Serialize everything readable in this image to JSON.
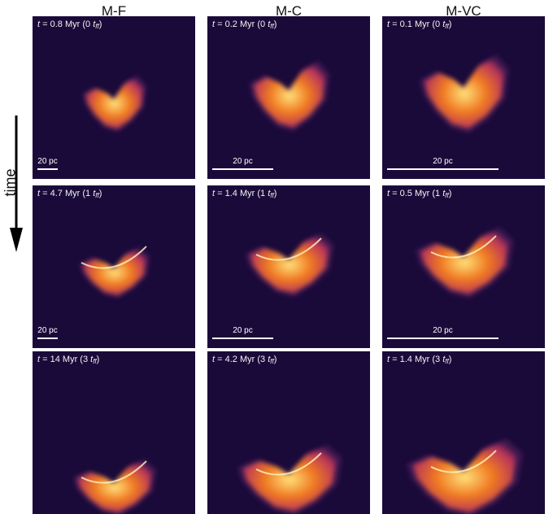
{
  "columns": [
    "M-F",
    "M-C",
    "M-VC"
  ],
  "time_axis_label": "time",
  "scale_bar_text": "20 pc",
  "tff_symbol": "t",
  "tff_sub": "ff",
  "rows": [
    [
      {
        "time_value": "0.8",
        "time_unit": "Myr",
        "tff_mult": "0"
      },
      {
        "time_value": "0.2",
        "time_unit": "Myr",
        "tff_mult": "0"
      },
      {
        "time_value": "0.1",
        "time_unit": "Myr",
        "tff_mult": "0"
      }
    ],
    [
      {
        "time_value": "4.7",
        "time_unit": "Myr",
        "tff_mult": "1"
      },
      {
        "time_value": "1.4",
        "time_unit": "Myr",
        "tff_mult": "1"
      },
      {
        "time_value": "0.5",
        "time_unit": "Myr",
        "tff_mult": "1"
      }
    ],
    [
      {
        "time_value": "14",
        "time_unit": "Myr",
        "tff_mult": "3"
      },
      {
        "time_value": "4.2",
        "time_unit": "Myr",
        "tff_mult": "3"
      },
      {
        "time_value": "1.4",
        "time_unit": "Myr",
        "tff_mult": "3"
      }
    ]
  ],
  "colors": {
    "background": "#1a0a3a",
    "cloud_outer": "#b8345a",
    "cloud_mid": "#f07a22",
    "cloud_core": "#ffe17a"
  }
}
